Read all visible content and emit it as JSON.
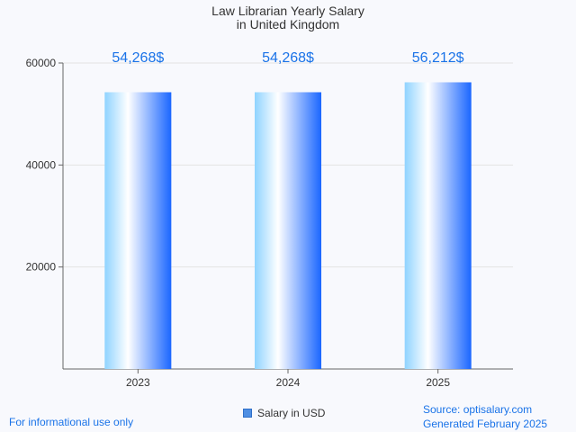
{
  "chart_data": {
    "type": "bar",
    "title": [
      "Law Librarian Yearly Salary",
      "in United Kingdom"
    ],
    "categories": [
      "2023",
      "2024",
      "2025"
    ],
    "series": [
      {
        "name": "Salary in USD",
        "values": [
          54268,
          54268,
          56212
        ]
      }
    ],
    "value_labels": [
      "54,268$",
      "54,268$",
      "56,212$"
    ],
    "y_ticks": [
      20000,
      40000,
      60000
    ],
    "y_tick_labels": [
      "20000",
      "40000",
      "60000"
    ],
    "ylim": [
      0,
      60000
    ],
    "grid": true,
    "legend_position": "bottom-center",
    "colors": {
      "bar_light": "#ffffff",
      "bar_mid": "#8fd3ff",
      "bar_dark": "#1a66ff",
      "value_label": "#1a73e8",
      "footer_text": "#1a73e8",
      "grid": "#e3e3e3",
      "axis": "#666666"
    }
  },
  "legend": {
    "label": "Salary in USD"
  },
  "footer": {
    "left": "For informational use only",
    "source": "Source: optisalary.com",
    "generated": "Generated February 2025"
  }
}
